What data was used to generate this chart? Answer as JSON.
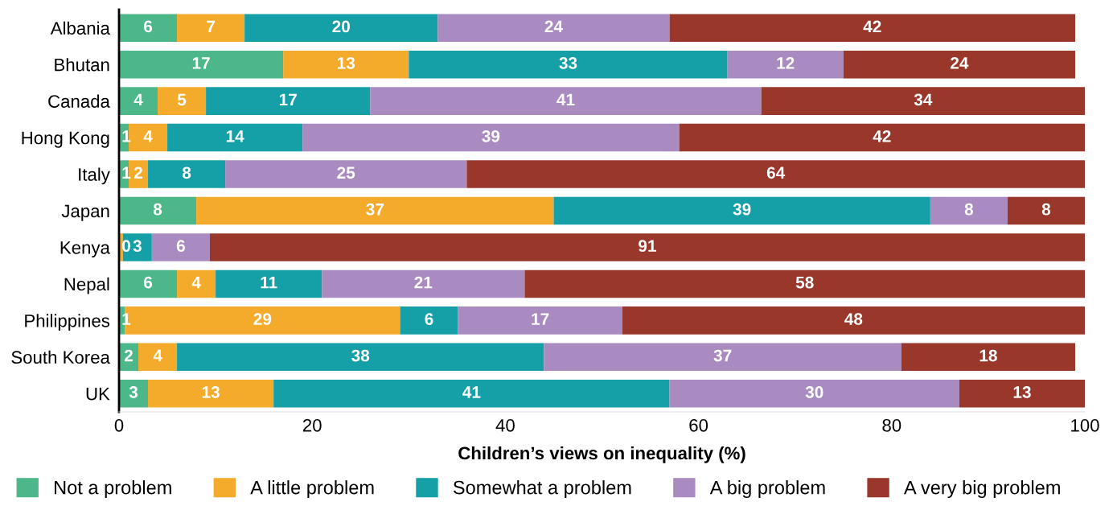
{
  "chart_data": {
    "type": "bar",
    "orientation": "horizontal",
    "stacked": true,
    "xlabel": "Children’s views on inequality (%)",
    "categories": [
      "Albania",
      "Bhutan",
      "Canada",
      "Hong Kong",
      "Italy",
      "Japan",
      "Kenya",
      "Nepal",
      "Philippines",
      "South Korea",
      "UK"
    ],
    "series": [
      {
        "name": "Not a problem",
        "color": "#4cb88a",
        "values": [
          6,
          17,
          4,
          1,
          1,
          8,
          null,
          6,
          0.6,
          2,
          3
        ],
        "value_labels": [
          "6",
          "17",
          "4",
          "1",
          "1",
          "8",
          null,
          "6",
          "1",
          "2",
          "3"
        ]
      },
      {
        "name": "A little problem",
        "color": "#f4aa2a",
        "values": [
          7,
          13,
          5,
          4,
          2,
          37,
          0.4,
          4,
          28.5,
          4,
          13
        ],
        "value_labels": [
          "7",
          "13",
          "5",
          "4",
          "2",
          "37",
          "0",
          "4",
          "29",
          "4",
          "13"
        ]
      },
      {
        "name": "Somewhat a problem",
        "color": "#15a0a8",
        "values": [
          20,
          33,
          17,
          14,
          8,
          39,
          3,
          11,
          6,
          38,
          41
        ],
        "value_labels": [
          "20",
          "33",
          "17",
          "14",
          "8",
          "39",
          "3",
          "11",
          "6",
          "38",
          "41"
        ]
      },
      {
        "name": "A big problem",
        "color": "#a98bc2",
        "values": [
          24,
          12,
          40.5,
          39,
          25,
          8,
          6,
          21,
          17,
          37,
          30
        ],
        "value_labels": [
          "24",
          "12",
          "41",
          "39",
          "25",
          "8",
          "6",
          "21",
          "17",
          "37",
          "30"
        ]
      },
      {
        "name": "A very big problem",
        "color": "#9a372b",
        "values": [
          42,
          24,
          33.5,
          42,
          64,
          8,
          90.6,
          58,
          47.9,
          18,
          13
        ],
        "value_labels": [
          "42",
          "24",
          "34",
          "42",
          "64",
          "8",
          "91",
          "58",
          "48",
          "18",
          "13"
        ]
      }
    ],
    "xlim": [
      0,
      100
    ],
    "xticks": [
      0,
      20,
      40,
      60,
      80,
      100
    ],
    "legend": "bottom",
    "grid": false
  }
}
